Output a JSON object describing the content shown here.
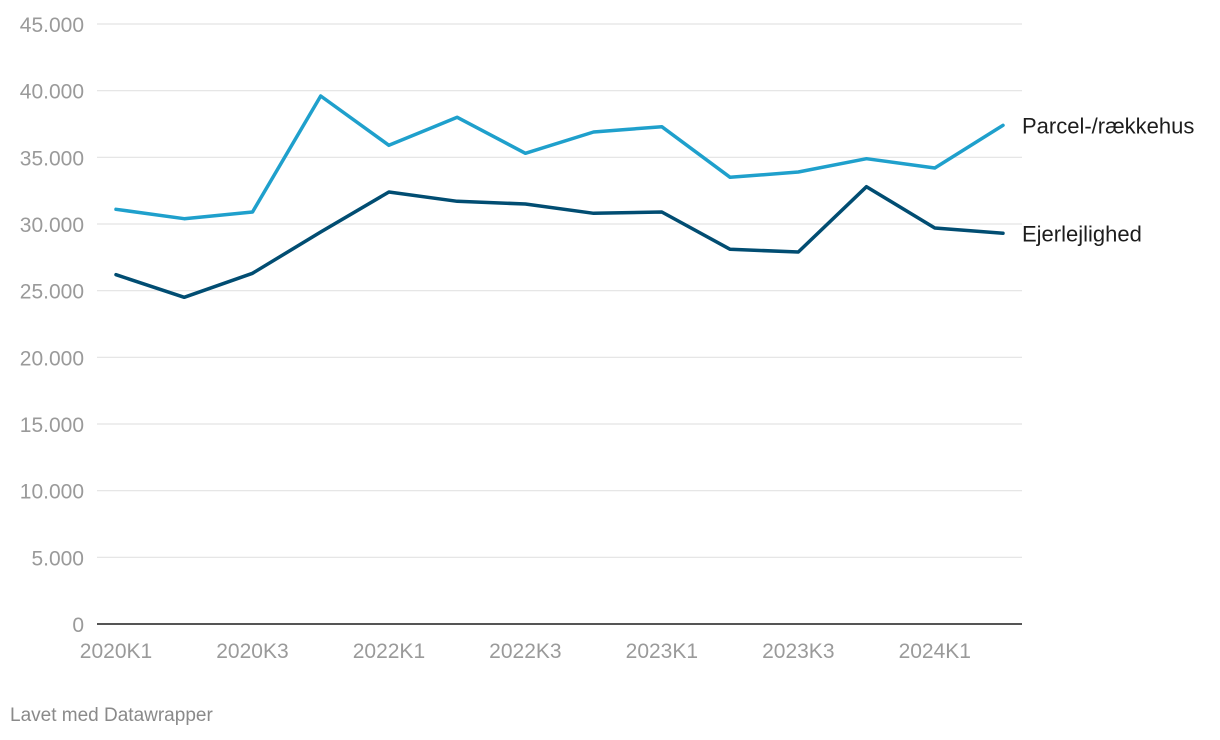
{
  "chart_data": {
    "type": "line",
    "title": "",
    "xlabel": "",
    "ylabel": "",
    "ylim": [
      0,
      45000
    ],
    "y_ticks": [
      0,
      5000,
      10000,
      15000,
      20000,
      25000,
      30000,
      35000,
      40000,
      45000
    ],
    "y_tick_labels": [
      "0",
      "5.000",
      "10.000",
      "15.000",
      "20.000",
      "25.000",
      "30.000",
      "35.000",
      "40.000",
      "45.000"
    ],
    "x": [
      "2020K1",
      "2020K2",
      "2020K3",
      "2020K4",
      "2022K1",
      "2022K2",
      "2022K3",
      "2022K4",
      "2023K1",
      "2023K2",
      "2023K3",
      "2023K4",
      "2024K1",
      "2024K2"
    ],
    "x_tick_labels": [
      "2020K1",
      "2020K3",
      "2022K1",
      "2022K3",
      "2023K1",
      "2023K3",
      "2024K1"
    ],
    "x_tick_positions": [
      0,
      2,
      4,
      6,
      8,
      10,
      12
    ],
    "grid": true,
    "legend": "direct labels at line ends (right)",
    "series": [
      {
        "name": "Parcel-/rækkehus",
        "color": "#1fa0cc",
        "values": [
          31100,
          30400,
          30900,
          39600,
          35900,
          38000,
          35300,
          36900,
          37300,
          33500,
          33900,
          34900,
          34200,
          37400
        ]
      },
      {
        "name": "Ejerlejlighed",
        "color": "#014d72",
        "values": [
          26200,
          24500,
          26300,
          29400,
          32400,
          31700,
          31500,
          30800,
          30900,
          28100,
          27900,
          32800,
          29700,
          29300
        ]
      }
    ]
  },
  "footer": {
    "credit": "Lavet med Datawrapper"
  }
}
